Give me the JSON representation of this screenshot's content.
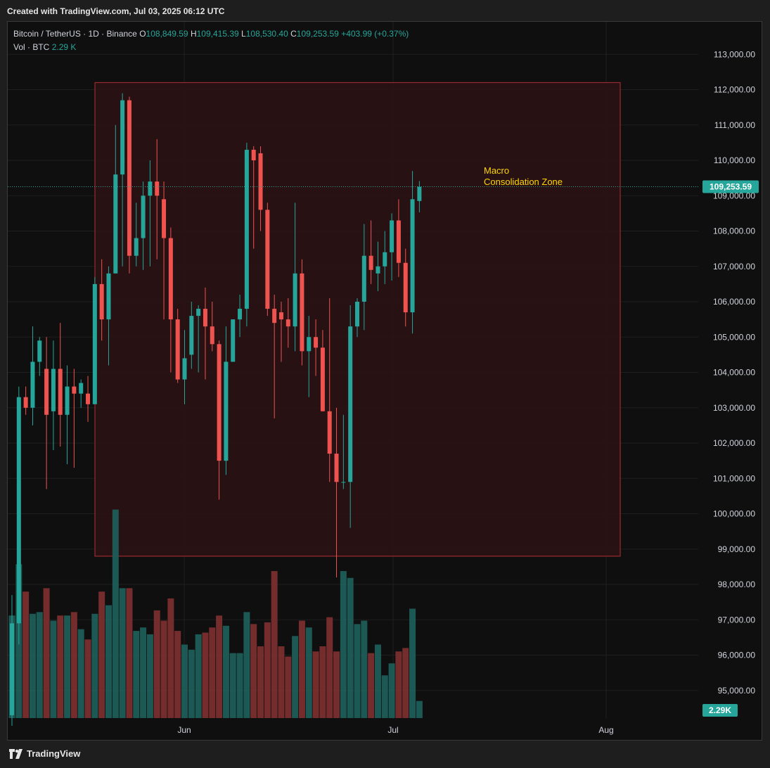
{
  "header": {
    "created_text": "Created with TradingView.com, Jul 03, 2025 06:12 UTC"
  },
  "legend": {
    "symbol": "Bitcoin / TetherUS · 1D · Binance",
    "open_label": "O",
    "open_value": "108,849.59",
    "high_label": "H",
    "high_value": "109,415.39",
    "low_label": "L",
    "low_value": "108,530.40",
    "close_label": "C",
    "close_value": "109,253.59",
    "change": "+403.99 (+0.37%)",
    "vol_label": "Vol · BTC",
    "vol_value": "2.29 K"
  },
  "price_axis": {
    "ticks": [
      "113,000.00",
      "112,000.00",
      "111,000.00",
      "110,000.00",
      "109,000.00",
      "108,000.00",
      "107,000.00",
      "106,000.00",
      "105,000.00",
      "104,000.00",
      "103,000.00",
      "102,000.00",
      "101,000.00",
      "100,000.00",
      "99,000.00",
      "98,000.00",
      "97,000.00",
      "96,000.00",
      "95,000.00"
    ],
    "last_price_label": "109,253.59",
    "volume_label": "2.29K"
  },
  "time_axis": {
    "labels": [
      "Jun",
      "Jul",
      "Aug"
    ]
  },
  "annotation": {
    "line1": "Macro",
    "line2": "Consolidation Zone",
    "zone_top": 112200,
    "zone_bottom": 98800,
    "color": "#ffd600"
  },
  "footer": {
    "brand": "TradingView"
  },
  "colors": {
    "up": "#26a69a",
    "down": "#ef5350",
    "zone_border": "#9b2b30",
    "zone_fill": "#2a1214",
    "bg": "#0f0f0f"
  },
  "chart_data": {
    "type": "candlestick",
    "symbol": "BTCUSDT",
    "interval": "1D",
    "ylim": [
      94000,
      113600
    ],
    "x_start": "2025-05-05",
    "candles": [
      {
        "o": 94300,
        "h": 97700,
        "l": 94000,
        "c": 96900,
        "v": 6.0
      },
      {
        "o": 96900,
        "h": 103600,
        "l": 96300,
        "c": 103300,
        "v": 9.0
      },
      {
        "o": 103300,
        "h": 103600,
        "l": 102800,
        "c": 103000,
        "v": 7.4
      },
      {
        "o": 103000,
        "h": 105300,
        "l": 102500,
        "c": 104300,
        "v": 6.1
      },
      {
        "o": 104300,
        "h": 105000,
        "l": 103900,
        "c": 104900,
        "v": 6.2
      },
      {
        "o": 104100,
        "h": 105000,
        "l": 100700,
        "c": 102800,
        "v": 7.6
      },
      {
        "o": 102900,
        "h": 104900,
        "l": 101800,
        "c": 104100,
        "v": 5.7
      },
      {
        "o": 104100,
        "h": 105400,
        "l": 101900,
        "c": 102800,
        "v": 6.0
      },
      {
        "o": 102800,
        "h": 104200,
        "l": 101400,
        "c": 103600,
        "v": 6.0
      },
      {
        "o": 103600,
        "h": 104100,
        "l": 101300,
        "c": 103400,
        "v": 6.2
      },
      {
        "o": 103400,
        "h": 103800,
        "l": 103000,
        "c": 103700,
        "v": 5.2
      },
      {
        "o": 103400,
        "h": 103900,
        "l": 102600,
        "c": 103100,
        "v": 4.6
      },
      {
        "o": 103100,
        "h": 106700,
        "l": 103100,
        "c": 106500,
        "v": 6.1
      },
      {
        "o": 106500,
        "h": 107200,
        "l": 104900,
        "c": 105500,
        "v": 7.4
      },
      {
        "o": 105500,
        "h": 107000,
        "l": 104200,
        "c": 106800,
        "v": 6.6
      },
      {
        "o": 106800,
        "h": 111000,
        "l": 106800,
        "c": 109600,
        "v": 12.2
      },
      {
        "o": 109600,
        "h": 111900,
        "l": 107000,
        "c": 111700,
        "v": 7.6
      },
      {
        "o": 111700,
        "h": 111800,
        "l": 106800,
        "c": 107300,
        "v": 7.6
      },
      {
        "o": 107300,
        "h": 108800,
        "l": 107000,
        "c": 107800,
        "v": 5.1
      },
      {
        "o": 107800,
        "h": 109400,
        "l": 106900,
        "c": 109000,
        "v": 5.3
      },
      {
        "o": 109000,
        "h": 110000,
        "l": 107000,
        "c": 109400,
        "v": 4.9
      },
      {
        "o": 109400,
        "h": 110600,
        "l": 107200,
        "c": 109000,
        "v": 6.3
      },
      {
        "o": 108900,
        "h": 109400,
        "l": 105500,
        "c": 107800,
        "v": 5.7
      },
      {
        "o": 107800,
        "h": 108100,
        "l": 104000,
        "c": 105500,
        "v": 7.0
      },
      {
        "o": 105500,
        "h": 105800,
        "l": 103700,
        "c": 103800,
        "v": 5.1
      },
      {
        "o": 103800,
        "h": 105200,
        "l": 103100,
        "c": 104400,
        "v": 4.3
      },
      {
        "o": 104500,
        "h": 106000,
        "l": 104100,
        "c": 105600,
        "v": 4.0
      },
      {
        "o": 105600,
        "h": 105900,
        "l": 104000,
        "c": 105800,
        "v": 4.9
      },
      {
        "o": 105800,
        "h": 106400,
        "l": 103800,
        "c": 105300,
        "v": 5.0
      },
      {
        "o": 105300,
        "h": 106000,
        "l": 104600,
        "c": 104800,
        "v": 5.3
      },
      {
        "o": 104800,
        "h": 104900,
        "l": 100400,
        "c": 101500,
        "v": 6.0
      },
      {
        "o": 101500,
        "h": 105300,
        "l": 101100,
        "c": 104300,
        "v": 5.4
      },
      {
        "o": 104300,
        "h": 105500,
        "l": 104300,
        "c": 105500,
        "v": 3.8
      },
      {
        "o": 105500,
        "h": 106200,
        "l": 105000,
        "c": 105800,
        "v": 3.8
      },
      {
        "o": 105800,
        "h": 110500,
        "l": 105300,
        "c": 110300,
        "v": 6.2
      },
      {
        "o": 110300,
        "h": 110400,
        "l": 107500,
        "c": 110000,
        "v": 5.5
      },
      {
        "o": 110200,
        "h": 110400,
        "l": 108000,
        "c": 108600,
        "v": 4.2
      },
      {
        "o": 108600,
        "h": 108800,
        "l": 105600,
        "c": 105800,
        "v": 5.6
      },
      {
        "o": 105800,
        "h": 106200,
        "l": 102700,
        "c": 105400,
        "v": 8.6
      },
      {
        "o": 105700,
        "h": 106000,
        "l": 104300,
        "c": 105500,
        "v": 4.2
      },
      {
        "o": 105500,
        "h": 106100,
        "l": 104700,
        "c": 105300,
        "v": 3.6
      },
      {
        "o": 105300,
        "h": 108800,
        "l": 104600,
        "c": 106800,
        "v": 4.8
      },
      {
        "o": 106800,
        "h": 107200,
        "l": 104200,
        "c": 104600,
        "v": 5.7
      },
      {
        "o": 104600,
        "h": 105600,
        "l": 103300,
        "c": 105000,
        "v": 5.3
      },
      {
        "o": 105000,
        "h": 105500,
        "l": 103900,
        "c": 104700,
        "v": 3.9
      },
      {
        "o": 104700,
        "h": 105200,
        "l": 102900,
        "c": 102900,
        "v": 4.2
      },
      {
        "o": 102900,
        "h": 106100,
        "l": 100900,
        "c": 101700,
        "v": 5.9
      },
      {
        "o": 101700,
        "h": 103000,
        "l": 98200,
        "c": 100900,
        "v": 3.9
      },
      {
        "o": 100900,
        "h": 102800,
        "l": 100700,
        "c": 100900,
        "v": 8.6
      },
      {
        "o": 100900,
        "h": 105900,
        "l": 99600,
        "c": 105300,
        "v": 8.2
      },
      {
        "o": 105300,
        "h": 106100,
        "l": 105000,
        "c": 106000,
        "v": 5.5
      },
      {
        "o": 106000,
        "h": 108200,
        "l": 105200,
        "c": 107300,
        "v": 5.7
      },
      {
        "o": 107300,
        "h": 108300,
        "l": 106500,
        "c": 106900,
        "v": 3.8
      },
      {
        "o": 106800,
        "h": 107700,
        "l": 106300,
        "c": 107000,
        "v": 4.3
      },
      {
        "o": 107000,
        "h": 108000,
        "l": 106500,
        "c": 107400,
        "v": 2.5
      },
      {
        "o": 107400,
        "h": 108500,
        "l": 106600,
        "c": 108300,
        "v": 3.2
      },
      {
        "o": 108300,
        "h": 108900,
        "l": 106700,
        "c": 107100,
        "v": 3.9
      },
      {
        "o": 107100,
        "h": 107500,
        "l": 105300,
        "c": 105700,
        "v": 4.1
      },
      {
        "o": 105700,
        "h": 109700,
        "l": 105100,
        "c": 108900,
        "v": 6.4
      },
      {
        "o": 108850,
        "h": 109415,
        "l": 108530,
        "c": 109254,
        "v": 1.0
      }
    ]
  }
}
